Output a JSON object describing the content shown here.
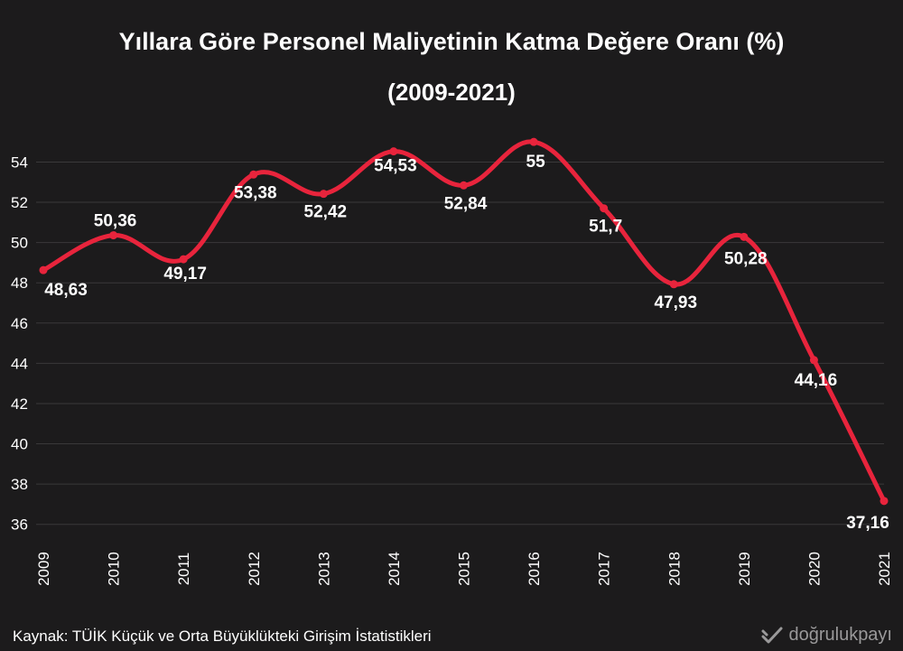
{
  "chart_data": {
    "type": "line",
    "title": "Yıllara Göre Personel Maliyetinin Katma Değere Oranı (%)",
    "subtitle": "(2009-2021)",
    "xlabel": "",
    "ylabel": "",
    "categories": [
      "2009",
      "2010",
      "2011",
      "2012",
      "2013",
      "2014",
      "2015",
      "2016",
      "2017",
      "2018",
      "2019",
      "2020",
      "2021"
    ],
    "values": [
      48.63,
      50.36,
      49.17,
      53.38,
      52.42,
      54.53,
      52.84,
      55,
      51.7,
      47.93,
      50.28,
      44.16,
      37.16
    ],
    "data_labels": [
      "48,63",
      "50,36",
      "49,17",
      "53,38",
      "52,42",
      "54,53",
      "52,84",
      "55",
      "51,7",
      "47,93",
      "50,28",
      "44,16",
      "37,16"
    ],
    "yticks": [
      36,
      38,
      40,
      42,
      44,
      46,
      48,
      50,
      52,
      54
    ],
    "ylim": [
      35,
      55.5
    ],
    "grid": true,
    "line_color": "#e8243c"
  },
  "footer": {
    "source": "Kaynak: TÜİK Küçük ve Orta Büyüklükteki Girişim İstatistikleri",
    "brand": "doğrulukpayı"
  }
}
